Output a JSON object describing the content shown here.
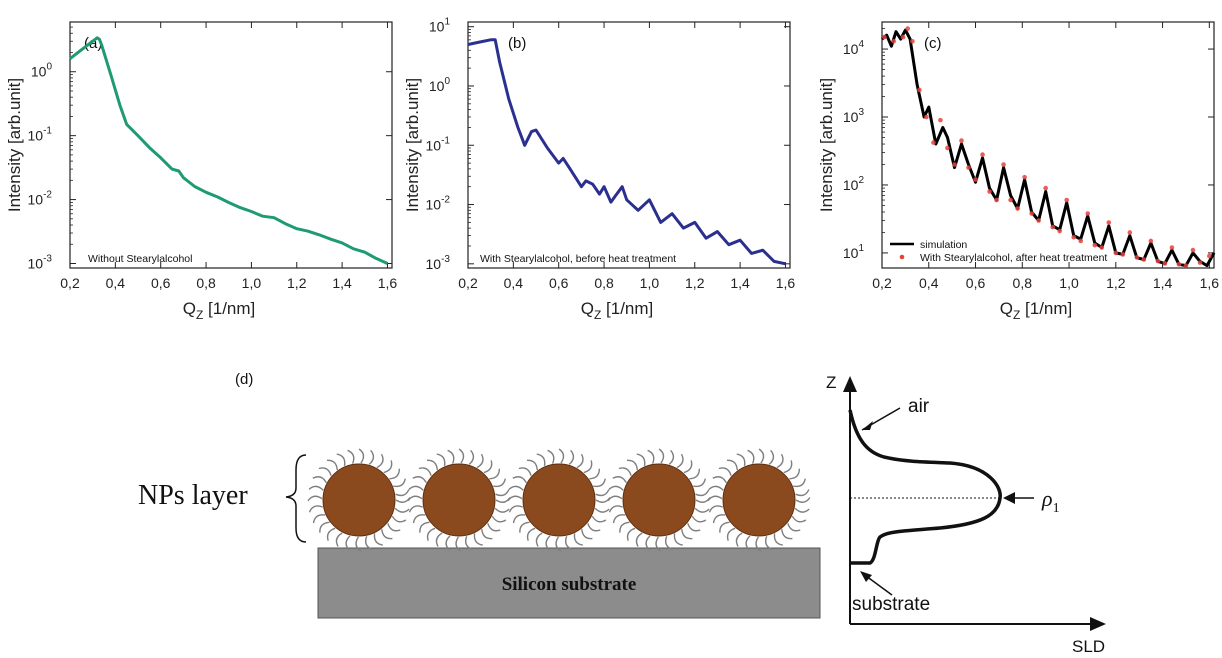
{
  "chart_data": [
    {
      "type": "line",
      "panel": "(a)",
      "xlabel": "Q",
      "xlabel_sub": "Z",
      "xlabel_unit": " [1/nm]",
      "ylabel": "Intensity [arb.unit]",
      "log_y": true,
      "xlim": [
        0.2,
        1.62
      ],
      "ylim": [
        0.00085,
        6
      ],
      "xticks": [
        "0,2",
        "0,4",
        "0,6",
        "0,8",
        "1,0",
        "1,2",
        "1,4",
        "1,6"
      ],
      "yticks": [
        {
          "mant": "10",
          "exp": "-3"
        },
        {
          "mant": "10",
          "exp": "-2"
        },
        {
          "mant": "10",
          "exp": "-1"
        },
        {
          "mant": "10",
          "exp": "0"
        }
      ],
      "annotation": "Without Stearylalcohol",
      "series": [
        {
          "color": "#1e9a74",
          "x": [
            0.2,
            0.25,
            0.3,
            0.32,
            0.33,
            0.34,
            0.38,
            0.42,
            0.45,
            0.5,
            0.55,
            0.6,
            0.65,
            0.68,
            0.7,
            0.75,
            0.8,
            0.85,
            0.9,
            0.95,
            1.0,
            1.05,
            1.1,
            1.15,
            1.2,
            1.25,
            1.3,
            1.35,
            1.4,
            1.45,
            1.5,
            1.55,
            1.6
          ],
          "y": [
            1.6,
            2.2,
            3.0,
            3.4,
            3.2,
            2.6,
            0.9,
            0.3,
            0.15,
            0.1,
            0.065,
            0.045,
            0.03,
            0.028,
            0.022,
            0.016,
            0.013,
            0.011,
            0.009,
            0.0075,
            0.0065,
            0.0055,
            0.0052,
            0.0042,
            0.0035,
            0.0032,
            0.0028,
            0.0024,
            0.0021,
            0.0017,
            0.0015,
            0.0012,
            0.001
          ]
        }
      ]
    },
    {
      "type": "line",
      "panel": "(b)",
      "xlabel": "Q",
      "xlabel_sub": "Z",
      "xlabel_unit": " [1/nm]",
      "ylabel": "Intensity [arb.unit]",
      "log_y": true,
      "xlim": [
        0.2,
        1.62
      ],
      "ylim": [
        0.00085,
        12
      ],
      "xticks": [
        "0,2",
        "0,4",
        "0,6",
        "0,8",
        "1,0",
        "1,2",
        "1,4",
        "1,6"
      ],
      "yticks": [
        {
          "mant": "10",
          "exp": "-3"
        },
        {
          "mant": "10",
          "exp": "-2"
        },
        {
          "mant": "10",
          "exp": "-1"
        },
        {
          "mant": "10",
          "exp": "0"
        },
        {
          "mant": "10",
          "exp": "1"
        }
      ],
      "annotation": "With Stearylalcohol, before heat treatment",
      "series": [
        {
          "color": "#2b2f8f",
          "x": [
            0.2,
            0.25,
            0.3,
            0.32,
            0.34,
            0.38,
            0.42,
            0.45,
            0.48,
            0.5,
            0.55,
            0.6,
            0.62,
            0.65,
            0.7,
            0.72,
            0.75,
            0.78,
            0.8,
            0.83,
            0.85,
            0.88,
            0.9,
            0.95,
            1.0,
            1.05,
            1.1,
            1.15,
            1.2,
            1.25,
            1.3,
            1.35,
            1.4,
            1.45,
            1.5,
            1.55,
            1.6
          ],
          "y": [
            5.0,
            5.5,
            6.0,
            6.0,
            2.5,
            0.6,
            0.2,
            0.1,
            0.17,
            0.18,
            0.09,
            0.05,
            0.06,
            0.04,
            0.02,
            0.025,
            0.022,
            0.015,
            0.02,
            0.011,
            0.014,
            0.02,
            0.012,
            0.008,
            0.012,
            0.005,
            0.007,
            0.004,
            0.005,
            0.0027,
            0.0035,
            0.0021,
            0.0025,
            0.0015,
            0.0017,
            0.0011,
            0.001
          ]
        }
      ]
    },
    {
      "type": "line",
      "panel": "(c)",
      "xlabel": "Q",
      "xlabel_sub": "Z",
      "xlabel_unit": " [1/nm]",
      "ylabel": "Intensity [arb.unit]",
      "log_y": true,
      "xlim": [
        0.2,
        1.62
      ],
      "ylim": [
        6,
        25000
      ],
      "xticks": [
        "0,2",
        "0,4",
        "0,6",
        "0,8",
        "1,0",
        "1,2",
        "1,4",
        "1,6"
      ],
      "yticks": [
        {
          "mant": "10",
          "exp": "1"
        },
        {
          "mant": "10",
          "exp": "2"
        },
        {
          "mant": "10",
          "exp": "3"
        },
        {
          "mant": "10",
          "exp": "4"
        }
      ],
      "legend_position": "bottom-left",
      "series": [
        {
          "name": "simulation",
          "color": "#000000",
          "x": [
            0.2,
            0.22,
            0.24,
            0.26,
            0.28,
            0.3,
            0.32,
            0.35,
            0.38,
            0.4,
            0.43,
            0.46,
            0.48,
            0.51,
            0.54,
            0.57,
            0.6,
            0.63,
            0.66,
            0.69,
            0.72,
            0.75,
            0.78,
            0.81,
            0.84,
            0.87,
            0.9,
            0.93,
            0.96,
            0.99,
            1.02,
            1.05,
            1.08,
            1.11,
            1.14,
            1.17,
            1.2,
            1.23,
            1.26,
            1.29,
            1.32,
            1.35,
            1.38,
            1.41,
            1.44,
            1.47,
            1.5,
            1.53,
            1.56,
            1.59,
            1.62
          ],
          "y": [
            14000,
            16000,
            11000,
            18000,
            14000,
            19000,
            14000,
            3000,
            1000,
            1400,
            400,
            700,
            500,
            180,
            400,
            200,
            110,
            250,
            90,
            60,
            180,
            70,
            45,
            120,
            40,
            30,
            80,
            25,
            22,
            55,
            18,
            16,
            35,
            14,
            12,
            25,
            10,
            9.5,
            18,
            8.5,
            8,
            14,
            7.5,
            7,
            11,
            6.8,
            6.5,
            10,
            7.5,
            6.5,
            10
          ]
        },
        {
          "name": "With Stearylalcohol, after heat treatment",
          "color": "#e8413c",
          "x": [
            0.21,
            0.25,
            0.29,
            0.31,
            0.33,
            0.36,
            0.39,
            0.42,
            0.45,
            0.48,
            0.51,
            0.54,
            0.57,
            0.6,
            0.63,
            0.66,
            0.69,
            0.72,
            0.75,
            0.78,
            0.81,
            0.84,
            0.87,
            0.9,
            0.93,
            0.96,
            0.99,
            1.02,
            1.05,
            1.08,
            1.11,
            1.14,
            1.17,
            1.2,
            1.23,
            1.26,
            1.29,
            1.32,
            1.35,
            1.38,
            1.41,
            1.44,
            1.47,
            1.5,
            1.53,
            1.56,
            1.6
          ],
          "y": [
            15000,
            13000,
            15000,
            20000,
            13000,
            2500,
            1000,
            420,
            900,
            350,
            200,
            450,
            180,
            120,
            280,
            80,
            60,
            200,
            60,
            45,
            130,
            38,
            30,
            90,
            24,
            21,
            60,
            17,
            15,
            38,
            13,
            12,
            28,
            10,
            9.5,
            20,
            8.6,
            8,
            15,
            7.6,
            7,
            12,
            6.8,
            6.5,
            11,
            7.2,
            9
          ]
        }
      ]
    },
    {
      "type": "line",
      "panel": "(d)",
      "xlabel": "SLD",
      "ylabel": "Z",
      "annotations": [
        "air",
        "substrate",
        "ρ1"
      ],
      "layer_label": "NPs layer",
      "substrate_label": "Silicon substrate",
      "particle_count": 5,
      "particle_color": "#8b4a1e",
      "substrate_color": "#8c8c8c"
    }
  ]
}
